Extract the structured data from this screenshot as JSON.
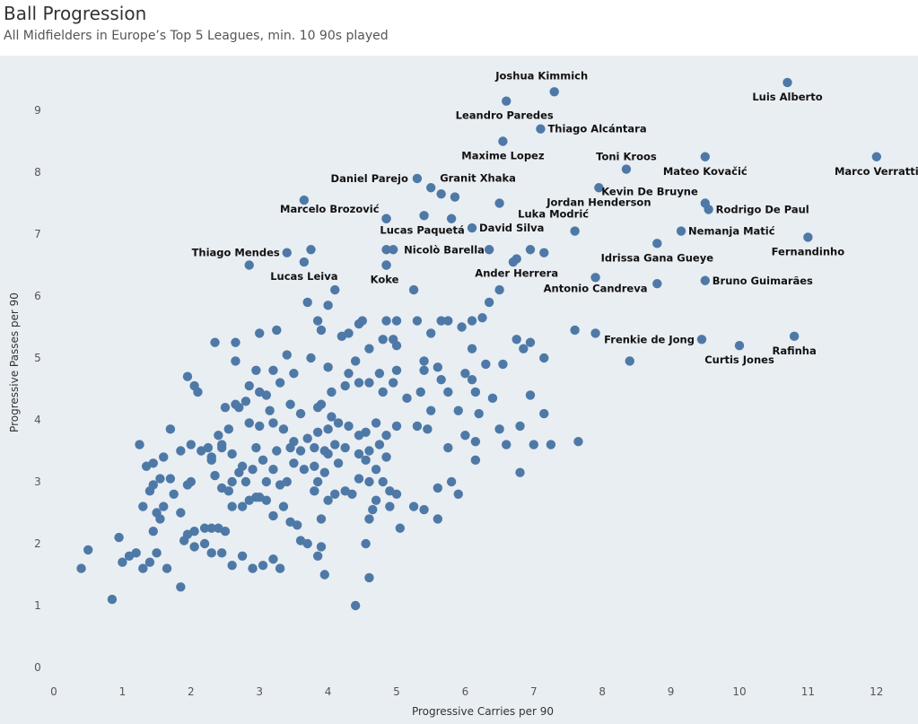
{
  "header": {
    "title": "Ball Progression",
    "subtitle": "All Midfielders in Europe’s Top 5 Leagues, min. 10 90s played"
  },
  "colors": {
    "background": "#ffffff",
    "plot_background": "#e9eef3",
    "point": "#4e79a7"
  },
  "chart_data": {
    "type": "scatter",
    "title": "Ball Progression",
    "subtitle": "All Midfielders in Europe’s Top 5 Leagues, min. 10 90s played",
    "xlabel": "Progressive Carries per 90",
    "ylabel": "Progressive Passes per 90",
    "xlim": [
      0,
      12.5
    ],
    "ylim": [
      0,
      9.6
    ],
    "xticks": [
      0,
      1,
      2,
      3,
      4,
      5,
      6,
      7,
      8,
      9,
      10,
      11,
      12
    ],
    "yticks": [
      0,
      1,
      2,
      3,
      4,
      5,
      6,
      7,
      8,
      9
    ],
    "grid": false,
    "labeled_points": [
      {
        "label": "Joshua Kimmich",
        "x": 7.3,
        "y": 9.3
      },
      {
        "label": "Luis Alberto",
        "x": 10.7,
        "y": 9.45
      },
      {
        "label": "Leandro Paredes",
        "x": 6.6,
        "y": 9.15
      },
      {
        "label": "Thiago Alcántara",
        "x": 7.1,
        "y": 8.7
      },
      {
        "label": "Maxime Lopez",
        "x": 6.55,
        "y": 8.5
      },
      {
        "label": "Marco Verratti",
        "x": 12.0,
        "y": 8.25
      },
      {
        "label": "Toni Kroos",
        "x": 8.35,
        "y": 8.05
      },
      {
        "label": "Mateo Kovačić",
        "x": 9.5,
        "y": 8.25
      },
      {
        "label": "Daniel Parejo",
        "x": 5.3,
        "y": 7.9
      },
      {
        "label": "Granit Xhaka",
        "x": 5.5,
        "y": 7.75
      },
      {
        "label": "Kevin De Bruyne",
        "x": 9.5,
        "y": 7.5
      },
      {
        "label": "Jordan Henderson",
        "x": 7.95,
        "y": 7.75
      },
      {
        "label": "Marcelo Brozović",
        "x": 4.85,
        "y": 7.25
      },
      {
        "label": "Rodrigo De Paul",
        "x": 9.55,
        "y": 7.4
      },
      {
        "label": "Luka Modrić",
        "x": 7.6,
        "y": 7.05
      },
      {
        "label": "Lucas Paquetá",
        "x": 5.4,
        "y": 7.3
      },
      {
        "label": "David Silva",
        "x": 6.1,
        "y": 7.1
      },
      {
        "label": "Nemanja Matić",
        "x": 9.15,
        "y": 7.05
      },
      {
        "label": "Fernandinho",
        "x": 11.0,
        "y": 6.95
      },
      {
        "label": "Thiago Mendes",
        "x": 3.4,
        "y": 6.7
      },
      {
        "label": "Nicolò Barella",
        "x": 4.95,
        "y": 6.75
      },
      {
        "label": "Idrissa Gana Gueye",
        "x": 8.8,
        "y": 6.85
      },
      {
        "label": "Lucas Leiva",
        "x": 3.65,
        "y": 6.55
      },
      {
        "label": "Ander Herrera",
        "x": 6.75,
        "y": 6.6
      },
      {
        "label": "Koke",
        "x": 4.85,
        "y": 6.5
      },
      {
        "label": "Bruno Guimarães",
        "x": 9.5,
        "y": 6.25
      },
      {
        "label": "Antonio Candreva",
        "x": 7.9,
        "y": 6.3
      },
      {
        "label": "Frenkie de Jong",
        "x": 9.45,
        "y": 5.3
      },
      {
        "label": "Rafinha",
        "x": 10.8,
        "y": 5.35
      },
      {
        "label": "Curtis Jones",
        "x": 10.0,
        "y": 5.2
      }
    ],
    "points": [
      [
        3.65,
        7.55
      ],
      [
        4.85,
        7.25
      ],
      [
        5.8,
        7.25
      ],
      [
        6.5,
        7.5
      ],
      [
        5.65,
        7.65
      ],
      [
        5.85,
        7.6
      ],
      [
        3.75,
        6.75
      ],
      [
        2.85,
        6.5
      ],
      [
        4.85,
        6.75
      ],
      [
        4.85,
        6.5
      ],
      [
        6.7,
        6.55
      ],
      [
        6.95,
        6.75
      ],
      [
        7.15,
        6.7
      ],
      [
        6.35,
        6.75
      ],
      [
        4.1,
        6.1
      ],
      [
        5.25,
        6.1
      ],
      [
        6.5,
        6.1
      ],
      [
        8.8,
        6.2
      ],
      [
        6.35,
        5.9
      ],
      [
        3.7,
        5.9
      ],
      [
        4.0,
        5.85
      ],
      [
        3.85,
        5.6
      ],
      [
        4.5,
        5.6
      ],
      [
        4.85,
        5.6
      ],
      [
        5.0,
        5.6
      ],
      [
        5.3,
        5.6
      ],
      [
        5.65,
        5.6
      ],
      [
        5.75,
        5.6
      ],
      [
        6.1,
        5.6
      ],
      [
        6.25,
        5.65
      ],
      [
        4.45,
        5.55
      ],
      [
        3.9,
        5.45
      ],
      [
        4.2,
        5.35
      ],
      [
        4.3,
        5.4
      ],
      [
        5.5,
        5.4
      ],
      [
        5.95,
        5.5
      ],
      [
        6.75,
        5.3
      ],
      [
        6.85,
        5.15
      ],
      [
        6.95,
        5.25
      ],
      [
        7.6,
        5.45
      ],
      [
        7.9,
        5.4
      ],
      [
        8.4,
        4.95
      ],
      [
        7.15,
        5.0
      ],
      [
        6.55,
        4.9
      ],
      [
        6.3,
        4.9
      ],
      [
        6.1,
        5.15
      ],
      [
        6.0,
        4.75
      ],
      [
        5.6,
        4.85
      ],
      [
        5.4,
        4.95
      ],
      [
        5.0,
        5.2
      ],
      [
        4.95,
        5.3
      ],
      [
        4.8,
        5.3
      ],
      [
        4.6,
        5.15
      ],
      [
        4.4,
        4.95
      ],
      [
        4.0,
        4.85
      ],
      [
        3.75,
        5.0
      ],
      [
        3.4,
        5.05
      ],
      [
        3.0,
        5.4
      ],
      [
        3.25,
        5.45
      ],
      [
        2.65,
        5.25
      ],
      [
        2.35,
        5.25
      ],
      [
        2.65,
        4.95
      ],
      [
        3.2,
        4.8
      ],
      [
        3.3,
        4.6
      ],
      [
        3.5,
        4.75
      ],
      [
        2.85,
        4.55
      ],
      [
        3.0,
        4.45
      ],
      [
        2.95,
        4.8
      ],
      [
        2.05,
        4.55
      ],
      [
        1.95,
        4.7
      ],
      [
        2.1,
        4.45
      ],
      [
        3.1,
        4.4
      ],
      [
        2.8,
        4.3
      ],
      [
        2.65,
        4.25
      ],
      [
        2.5,
        4.2
      ],
      [
        3.45,
        4.25
      ],
      [
        3.6,
        4.1
      ],
      [
        3.85,
        4.2
      ],
      [
        3.9,
        4.25
      ],
      [
        4.05,
        4.45
      ],
      [
        4.25,
        4.55
      ],
      [
        4.3,
        4.75
      ],
      [
        4.45,
        4.6
      ],
      [
        4.6,
        4.6
      ],
      [
        4.75,
        4.75
      ],
      [
        4.8,
        4.45
      ],
      [
        4.95,
        4.6
      ],
      [
        5.0,
        4.8
      ],
      [
        5.15,
        4.35
      ],
      [
        5.35,
        4.45
      ],
      [
        5.4,
        4.8
      ],
      [
        5.5,
        4.15
      ],
      [
        5.65,
        4.65
      ],
      [
        5.75,
        4.45
      ],
      [
        5.9,
        4.15
      ],
      [
        6.1,
        4.65
      ],
      [
        6.15,
        4.45
      ],
      [
        6.2,
        4.1
      ],
      [
        6.4,
        4.35
      ],
      [
        6.0,
        3.75
      ],
      [
        5.75,
        3.55
      ],
      [
        5.45,
        3.85
      ],
      [
        5.3,
        3.9
      ],
      [
        5.0,
        3.9
      ],
      [
        4.85,
        3.75
      ],
      [
        4.7,
        3.95
      ],
      [
        4.55,
        3.8
      ],
      [
        4.45,
        3.75
      ],
      [
        4.3,
        3.9
      ],
      [
        4.15,
        3.95
      ],
      [
        4.05,
        4.05
      ],
      [
        4.0,
        3.85
      ],
      [
        3.85,
        3.8
      ],
      [
        3.7,
        3.7
      ],
      [
        3.5,
        3.65
      ],
      [
        3.35,
        3.85
      ],
      [
        3.2,
        3.95
      ],
      [
        3.15,
        4.15
      ],
      [
        3.0,
        3.9
      ],
      [
        2.85,
        3.95
      ],
      [
        2.7,
        4.2
      ],
      [
        2.55,
        3.85
      ],
      [
        2.4,
        3.75
      ],
      [
        2.45,
        3.55
      ],
      [
        2.3,
        3.4
      ],
      [
        2.15,
        3.5
      ],
      [
        2.0,
        3.6
      ],
      [
        1.85,
        3.5
      ],
      [
        1.7,
        3.85
      ],
      [
        1.6,
        3.4
      ],
      [
        1.45,
        3.3
      ],
      [
        1.25,
        3.6
      ],
      [
        1.35,
        3.25
      ],
      [
        6.5,
        3.85
      ],
      [
        6.6,
        3.6
      ],
      [
        6.8,
        3.9
      ],
      [
        6.15,
        3.65
      ],
      [
        6.15,
        3.35
      ],
      [
        6.8,
        3.15
      ],
      [
        7.0,
        3.6
      ],
      [
        7.25,
        3.6
      ],
      [
        7.65,
        3.65
      ],
      [
        6.95,
        4.4
      ],
      [
        7.15,
        4.1
      ],
      [
        5.8,
        3.0
      ],
      [
        5.6,
        2.9
      ],
      [
        5.9,
        2.8
      ],
      [
        5.25,
        2.6
      ],
      [
        5.4,
        2.55
      ],
      [
        5.6,
        2.4
      ],
      [
        5.0,
        2.8
      ],
      [
        5.05,
        2.25
      ],
      [
        4.9,
        2.6
      ],
      [
        4.7,
        2.7
      ],
      [
        4.65,
        2.55
      ],
      [
        4.6,
        2.4
      ],
      [
        4.55,
        2.0
      ],
      [
        4.6,
        1.45
      ],
      [
        4.4,
        1.0
      ],
      [
        4.55,
        3.35
      ],
      [
        4.6,
        3.0
      ],
      [
        4.7,
        3.2
      ],
      [
        4.8,
        3.0
      ],
      [
        4.9,
        2.85
      ],
      [
        4.45,
        3.05
      ],
      [
        4.35,
        2.8
      ],
      [
        4.25,
        2.85
      ],
      [
        4.15,
        3.3
      ],
      [
        4.0,
        3.45
      ],
      [
        3.95,
        3.15
      ],
      [
        3.85,
        3.0
      ],
      [
        3.8,
        3.25
      ],
      [
        3.65,
        3.2
      ],
      [
        3.5,
        3.3
      ],
      [
        3.4,
        3.0
      ],
      [
        3.3,
        2.95
      ],
      [
        3.2,
        3.2
      ],
      [
        3.1,
        3.0
      ],
      [
        3.0,
        2.75
      ],
      [
        2.9,
        3.2
      ],
      [
        2.8,
        3.0
      ],
      [
        2.7,
        3.15
      ],
      [
        2.6,
        3.0
      ],
      [
        2.55,
        2.85
      ],
      [
        2.45,
        2.9
      ],
      [
        2.35,
        3.1
      ],
      [
        2.3,
        3.35
      ],
      [
        2.25,
        3.55
      ],
      [
        2.45,
        3.6
      ],
      [
        2.6,
        3.45
      ],
      [
        2.75,
        3.25
      ],
      [
        2.95,
        3.55
      ],
      [
        3.05,
        3.35
      ],
      [
        3.25,
        3.5
      ],
      [
        3.45,
        3.55
      ],
      [
        3.6,
        3.5
      ],
      [
        3.8,
        3.55
      ],
      [
        3.95,
        3.5
      ],
      [
        4.1,
        3.6
      ],
      [
        4.25,
        3.55
      ],
      [
        4.45,
        3.45
      ],
      [
        4.6,
        3.5
      ],
      [
        4.75,
        3.6
      ],
      [
        4.85,
        3.4
      ],
      [
        2.0,
        3.0
      ],
      [
        1.95,
        2.95
      ],
      [
        1.85,
        2.5
      ],
      [
        1.95,
        2.15
      ],
      [
        2.05,
        1.95
      ],
      [
        2.2,
        2.25
      ],
      [
        2.3,
        2.25
      ],
      [
        2.4,
        2.25
      ],
      [
        2.5,
        2.2
      ],
      [
        2.6,
        2.6
      ],
      [
        2.75,
        2.6
      ],
      [
        2.85,
        2.7
      ],
      [
        2.95,
        2.75
      ],
      [
        3.1,
        2.7
      ],
      [
        3.2,
        2.45
      ],
      [
        3.35,
        2.6
      ],
      [
        3.45,
        2.35
      ],
      [
        3.55,
        2.3
      ],
      [
        3.6,
        2.05
      ],
      [
        3.7,
        2.0
      ],
      [
        3.8,
        2.85
      ],
      [
        3.9,
        2.4
      ],
      [
        4.0,
        2.7
      ],
      [
        4.1,
        2.8
      ],
      [
        3.9,
        1.95
      ],
      [
        3.95,
        1.5
      ],
      [
        3.85,
        1.8
      ],
      [
        3.3,
        1.6
      ],
      [
        3.2,
        1.75
      ],
      [
        3.05,
        1.65
      ],
      [
        2.9,
        1.6
      ],
      [
        2.75,
        1.8
      ],
      [
        2.6,
        1.65
      ],
      [
        2.45,
        1.85
      ],
      [
        2.3,
        1.85
      ],
      [
        2.2,
        2.0
      ],
      [
        2.05,
        2.2
      ],
      [
        1.9,
        2.05
      ],
      [
        1.85,
        1.3
      ],
      [
        1.65,
        1.6
      ],
      [
        1.5,
        1.85
      ],
      [
        1.4,
        1.7
      ],
      [
        1.3,
        1.6
      ],
      [
        1.2,
        1.85
      ],
      [
        1.1,
        1.8
      ],
      [
        1.0,
        1.7
      ],
      [
        0.95,
        2.1
      ],
      [
        0.5,
        1.9
      ],
      [
        0.4,
        1.6
      ],
      [
        0.85,
        1.1
      ],
      [
        1.45,
        2.2
      ],
      [
        1.5,
        2.5
      ],
      [
        1.55,
        2.4
      ],
      [
        1.6,
        2.6
      ],
      [
        1.75,
        2.8
      ],
      [
        1.4,
        2.85
      ],
      [
        1.45,
        2.95
      ],
      [
        1.55,
        3.05
      ],
      [
        1.7,
        3.05
      ],
      [
        1.3,
        2.6
      ]
    ]
  }
}
